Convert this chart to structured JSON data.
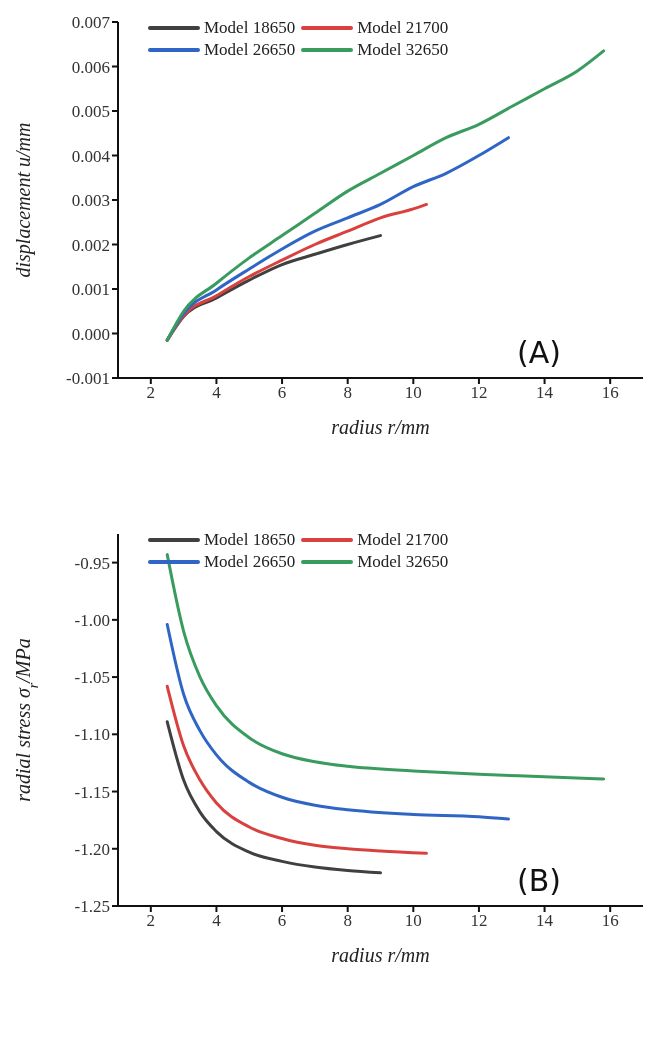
{
  "chart_data": [
    {
      "type": "line",
      "xlabel": "radius r/mm",
      "ylabel": "displacement u/mm",
      "annotations": [
        "(A)"
      ],
      "legend": "top",
      "grid": false,
      "marker": "none",
      "line_style": "solid",
      "xlim": [
        1,
        17
      ],
      "xticks": [
        2,
        4,
        6,
        8,
        10,
        12,
        14,
        16
      ],
      "ylim": [
        -0.001,
        0.007
      ],
      "yticks": [
        -0.001,
        {
          "value": 0,
          "label": "0.000"
        },
        0.001,
        0.002,
        0.003,
        0.004,
        0.005,
        0.006,
        0.007
      ],
      "series": [
        {
          "name": "Model 18650",
          "color": "#404040",
          "x": [
            2.5,
            3,
            4,
            5,
            6,
            7,
            8,
            9
          ],
          "values": [
            -0.00015,
            0.00038,
            0.0008,
            0.0012,
            0.00155,
            0.00178,
            0.002,
            0.0022
          ]
        },
        {
          "name": "Model 21700",
          "color": "#d9413f",
          "x": [
            2.5,
            3,
            4,
            5,
            6,
            7,
            8,
            9,
            10,
            10.4
          ],
          "values": [
            -0.00015,
            0.0004,
            0.00085,
            0.00128,
            0.00165,
            0.002,
            0.0023,
            0.0026,
            0.0028,
            0.0029
          ]
        },
        {
          "name": "Model 26650",
          "color": "#2f66c5",
          "x": [
            2.5,
            3,
            4,
            5,
            6,
            7,
            8,
            9,
            10,
            11,
            12,
            12.9
          ],
          "values": [
            -0.00015,
            0.00045,
            0.00098,
            0.00145,
            0.0019,
            0.0023,
            0.0026,
            0.0029,
            0.0033,
            0.0036,
            0.004,
            0.0044
          ]
        },
        {
          "name": "Model 32650",
          "color": "#3a9b5e",
          "x": [
            2.5,
            3,
            4,
            5,
            6,
            7,
            8,
            9,
            10,
            11,
            12,
            13,
            14,
            15,
            15.8
          ],
          "values": [
            -0.00015,
            0.0005,
            0.00113,
            0.0017,
            0.0022,
            0.0027,
            0.0032,
            0.0036,
            0.004,
            0.0044,
            0.0047,
            0.0051,
            0.0055,
            0.0059,
            0.00635
          ]
        }
      ]
    },
    {
      "type": "line",
      "xlabel": "radius r/mm",
      "ylabel": "radial stress σ$_{r}$/MPa",
      "annotations": [
        "(B)"
      ],
      "legend": "top",
      "grid": false,
      "marker": "none",
      "line_style": "solid",
      "xlim": [
        1,
        17
      ],
      "xticks": [
        2,
        4,
        6,
        8,
        10,
        12,
        14,
        16
      ],
      "ylim": [
        -1.25,
        -0.925
      ],
      "yticks": [
        -1.25,
        {
          "value": -1.2,
          "label": "-1.20"
        },
        -1.15,
        {
          "value": -1.1,
          "label": "-1.10"
        },
        -1.05,
        {
          "value": -1,
          "label": "-1.00"
        },
        -0.95
      ],
      "series": [
        {
          "name": "Model 18650",
          "color": "#404040",
          "x": [
            2.5,
            3,
            3.5,
            4,
            5,
            6,
            7,
            8,
            9
          ],
          "values": [
            -1.089,
            -1.14,
            -1.168,
            -1.185,
            -1.203,
            -1.211,
            -1.216,
            -1.219,
            -1.221
          ]
        },
        {
          "name": "Model 21700",
          "color": "#d9413f",
          "x": [
            2.5,
            3,
            3.5,
            4,
            5,
            6,
            7,
            8,
            9,
            10.4
          ],
          "values": [
            -1.058,
            -1.11,
            -1.14,
            -1.16,
            -1.181,
            -1.191,
            -1.197,
            -1.2,
            -1.202,
            -1.204
          ]
        },
        {
          "name": "Model 26650",
          "color": "#2f66c5",
          "x": [
            2.5,
            3,
            3.5,
            4,
            5,
            6,
            7,
            8,
            10,
            12,
            12.9
          ],
          "values": [
            -1.004,
            -1.065,
            -1.097,
            -1.118,
            -1.142,
            -1.155,
            -1.162,
            -1.166,
            -1.17,
            -1.172,
            -1.174
          ]
        },
        {
          "name": "Model 32650",
          "color": "#3a9b5e",
          "x": [
            2.5,
            3,
            3.5,
            4,
            5,
            6,
            7,
            8,
            10,
            12,
            14,
            15.8
          ],
          "values": [
            -0.943,
            -1.01,
            -1.05,
            -1.075,
            -1.103,
            -1.117,
            -1.124,
            -1.128,
            -1.132,
            -1.135,
            -1.137,
            -1.139
          ]
        }
      ]
    }
  ]
}
